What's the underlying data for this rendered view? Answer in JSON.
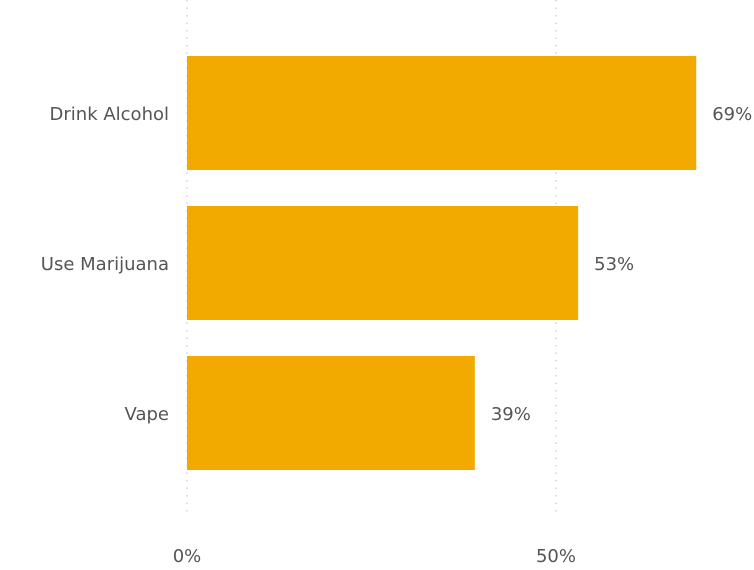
{
  "chart_data": {
    "type": "bar",
    "orientation": "horizontal",
    "categories": [
      "Drink Alcohol",
      "Use Marijuana",
      "Vape"
    ],
    "values": [
      69,
      53,
      39
    ],
    "value_labels": [
      "69%",
      "53%",
      "39%"
    ],
    "xlim": [
      0,
      75
    ],
    "x_ticks": [
      0,
      50
    ],
    "x_tick_labels": [
      "0%",
      "50%"
    ],
    "grid": "dotted vertical",
    "bar_color": "#F2A900"
  }
}
